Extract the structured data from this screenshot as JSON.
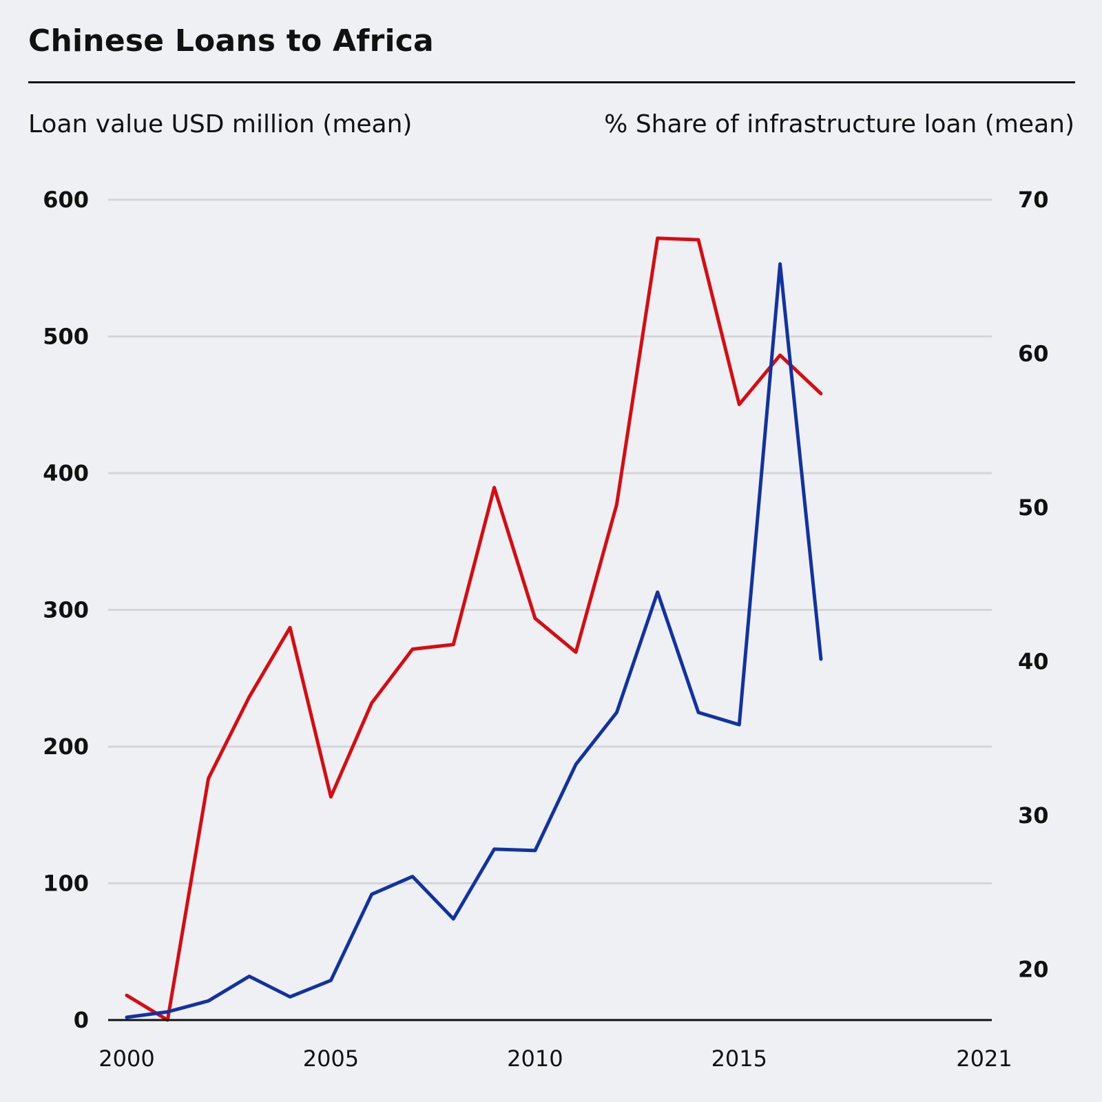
{
  "chart_data": {
    "type": "line",
    "title": "Chinese Loans to Africa",
    "ylabel": "Loan value USD million (mean)",
    "y2label": "% Share of infrastructure loan (mean)",
    "xlim": [
      2000,
      2021
    ],
    "ylim": [
      0,
      600
    ],
    "y2lim": [
      16.7,
      70
    ],
    "x_ticks": [
      2000,
      2005,
      2010,
      2015,
      2021
    ],
    "y_ticks": [
      0,
      100,
      200,
      300,
      400,
      500,
      600
    ],
    "y2_ticks": [
      20,
      30,
      40,
      50,
      60,
      70
    ],
    "grid": true,
    "x": [
      2000,
      2001,
      2002,
      2003,
      2004,
      2005,
      2006,
      2007,
      2008,
      2009,
      2010,
      2011,
      2012,
      2013,
      2014,
      2015,
      2016,
      2017
    ],
    "series": [
      {
        "axis": "left",
        "color": "#1232a0",
        "values": [
          2,
          6,
          14,
          32,
          17,
          29,
          92,
          105,
          74,
          125,
          124,
          187,
          225,
          313,
          225,
          216,
          553,
          264
        ]
      },
      {
        "axis": "right",
        "color": "#d50d12",
        "values": [
          18.3,
          16.7,
          32.4,
          37.7,
          42.2,
          31.2,
          37.3,
          40.8,
          41.1,
          51.3,
          42.8,
          40.6,
          50.2,
          67.5,
          67.4,
          56.7,
          59.9,
          57.4
        ]
      }
    ]
  }
}
